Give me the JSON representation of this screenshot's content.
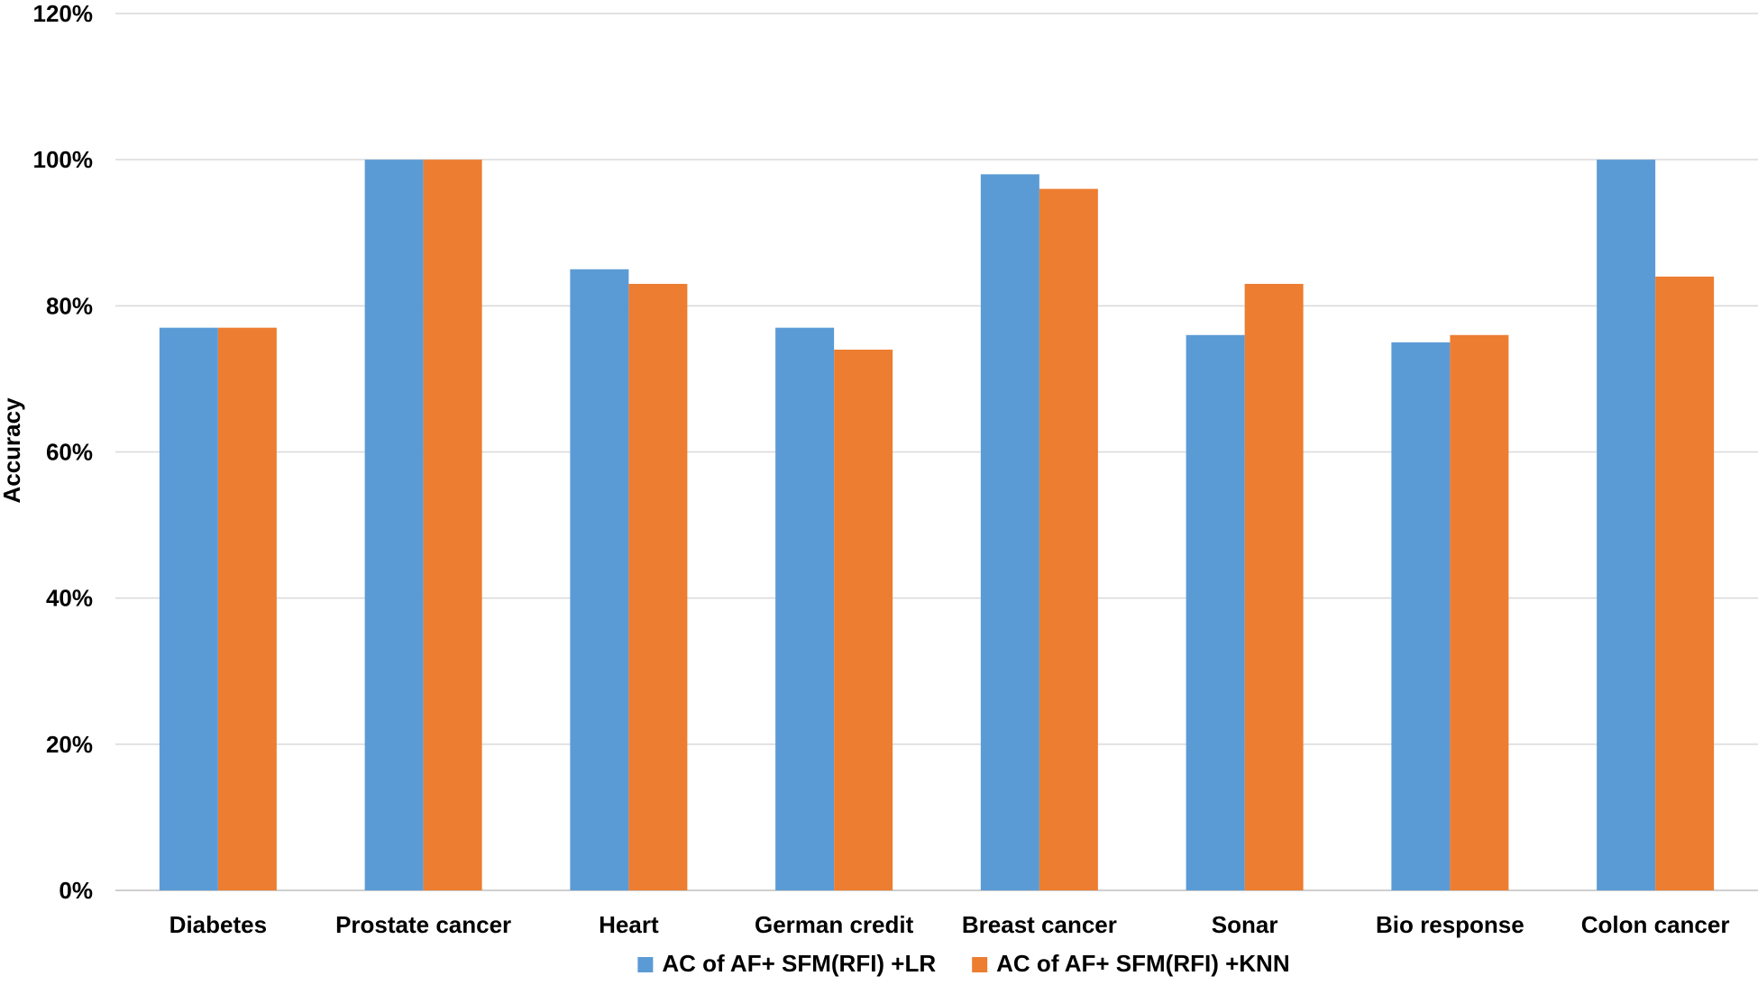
{
  "chart_data": {
    "type": "bar",
    "title": "",
    "xlabel": "",
    "ylabel": "Accuracy",
    "ylim": [
      0,
      120
    ],
    "yticks": [
      "0%",
      "20%",
      "40%",
      "60%",
      "80%",
      "100%",
      "120%"
    ],
    "grid": true,
    "legend_position": "bottom",
    "categories": [
      "Diabetes",
      "Prostate cancer",
      "Heart",
      "German credit",
      "Breast cancer",
      "Sonar",
      "Bio response",
      "Colon cancer"
    ],
    "series": [
      {
        "name": "AC of AF+ SFM(RFI) +LR",
        "color": "#5b9bd5",
        "values": [
          77,
          100,
          85,
          77,
          98,
          76,
          75,
          100
        ]
      },
      {
        "name": "AC of AF+ SFM(RFI) +KNN",
        "color": "#ed7d31",
        "values": [
          77,
          100,
          83,
          74,
          96,
          83,
          76,
          84
        ]
      }
    ]
  }
}
